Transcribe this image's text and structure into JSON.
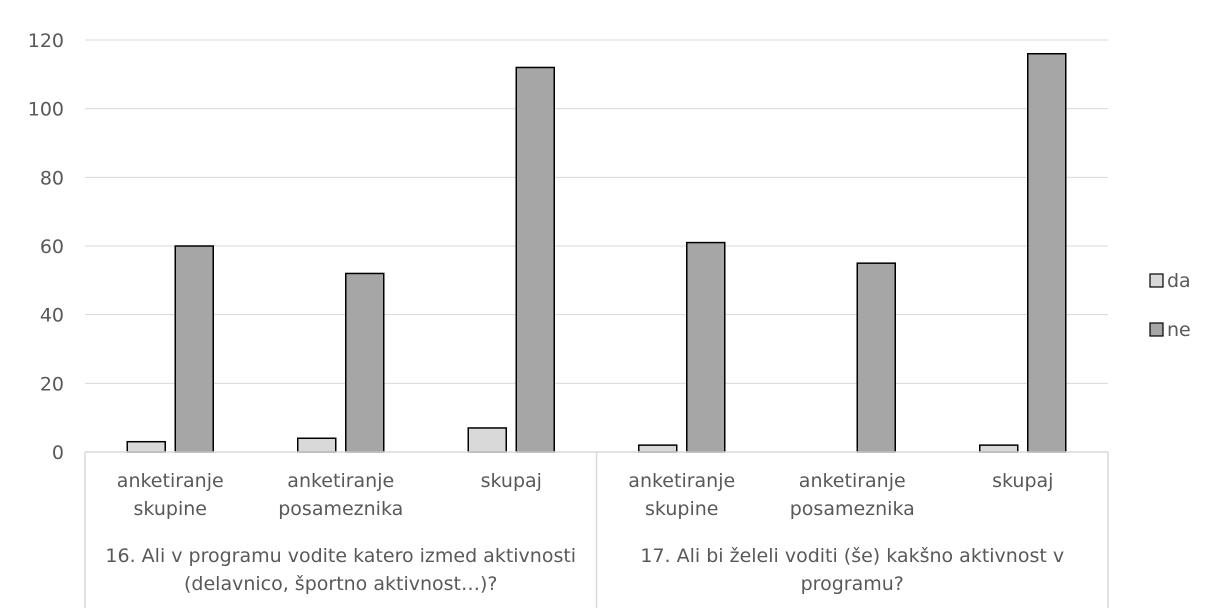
{
  "chart_data": {
    "type": "bar",
    "title": "",
    "xlabel": "",
    "ylabel": "",
    "ylim": [
      0,
      120
    ],
    "yticks": [
      0,
      20,
      40,
      60,
      80,
      100,
      120
    ],
    "grid": true,
    "legend_position": "right",
    "groups": [
      {
        "label": "16. Ali v programu vodite katero izmed aktivnosti (delavnico, športno aktivnost…)?",
        "label_lines": [
          "16. Ali v programu vodite katero izmed aktivnosti",
          "(delavnico, športno aktivnost…)?"
        ],
        "categories": [
          {
            "lines": [
              "anketiranje",
              "skupine"
            ]
          },
          {
            "lines": [
              "anketiranje",
              "posameznika"
            ]
          },
          {
            "lines": [
              "skupaj"
            ]
          }
        ]
      },
      {
        "label": "17. Ali bi želeli voditi (še) kakšno aktivnost v programu?",
        "label_lines": [
          "17. Ali bi želeli voditi (še) kakšno aktivnost v",
          "programu?"
        ],
        "categories": [
          {
            "lines": [
              "anketiranje",
              "skupine"
            ]
          },
          {
            "lines": [
              "anketiranje",
              "posameznika"
            ]
          },
          {
            "lines": [
              "skupaj"
            ]
          }
        ]
      }
    ],
    "series": [
      {
        "name": "da",
        "color": "#d9d9d9",
        "values": [
          3,
          4,
          7,
          2,
          0,
          2
        ]
      },
      {
        "name": "ne",
        "color": "#a6a6a6",
        "values": [
          60,
          52,
          112,
          61,
          55,
          116
        ]
      }
    ]
  },
  "colors": {
    "gridline": "#d9d9d9",
    "axis_text": "#595959",
    "bar_outline": "#000000"
  }
}
